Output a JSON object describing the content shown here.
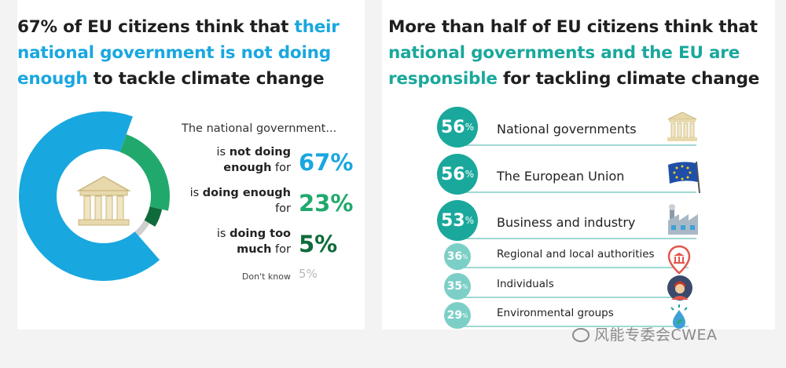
{
  "left": {
    "title_parts": {
      "part1": "67% of EU citizens think that ",
      "highlight": "their national government is not doing enough",
      "part2": " to tackle climate change"
    },
    "intro": "The national government...",
    "rows": [
      {
        "label_pre": "is ",
        "label_bold": "not doing enough",
        "label_post": " for",
        "value": "67%"
      },
      {
        "label_pre": "is ",
        "label_bold": "doing enough",
        "label_post": " for",
        "value": "23%"
      },
      {
        "label_pre": "is ",
        "label_bold": "doing too much",
        "label_post": " for",
        "value": "5%"
      },
      {
        "label_pre": "",
        "label_bold": "",
        "label_post": "Don't know",
        "value": "5%"
      }
    ],
    "colors": {
      "not_enough": "#19a7e0",
      "enough": "#21a96d",
      "too_much": "#0f6b3a",
      "dont_know": "#cfcfcf"
    }
  },
  "right": {
    "title_parts": {
      "part1": "More than half of EU citizens think that ",
      "highlight": "national governments and the EU are responsible",
      "part2": " for tackling climate change"
    }
  },
  "chart_data": [
    {
      "type": "pie",
      "title": "67% of EU citizens think that their national government is not doing enough to tackle climate change",
      "categories": [
        "is not doing enough for",
        "is doing enough for",
        "is doing too much for",
        "Don't know"
      ],
      "values": [
        67,
        23,
        5,
        5
      ],
      "unit": "%"
    },
    {
      "type": "bar",
      "title": "More than half of EU citizens think that national governments and the EU are responsible for tackling climate change",
      "categories": [
        "National governments",
        "The European Union",
        "Business and industry",
        "Regional and local authorities",
        "Individuals",
        "Environmental groups"
      ],
      "values": [
        56,
        56,
        53,
        36,
        35,
        29
      ],
      "labels": [
        "56",
        "56",
        "53",
        "36",
        "35",
        "29"
      ],
      "unit": "%",
      "icons": [
        "government-building-icon",
        "eu-flag-icon",
        "factory-icon",
        "location-pin-icon",
        "person-icon",
        "leaf-drop-icon"
      ]
    }
  ],
  "watermark": "风能专委会CWEA"
}
